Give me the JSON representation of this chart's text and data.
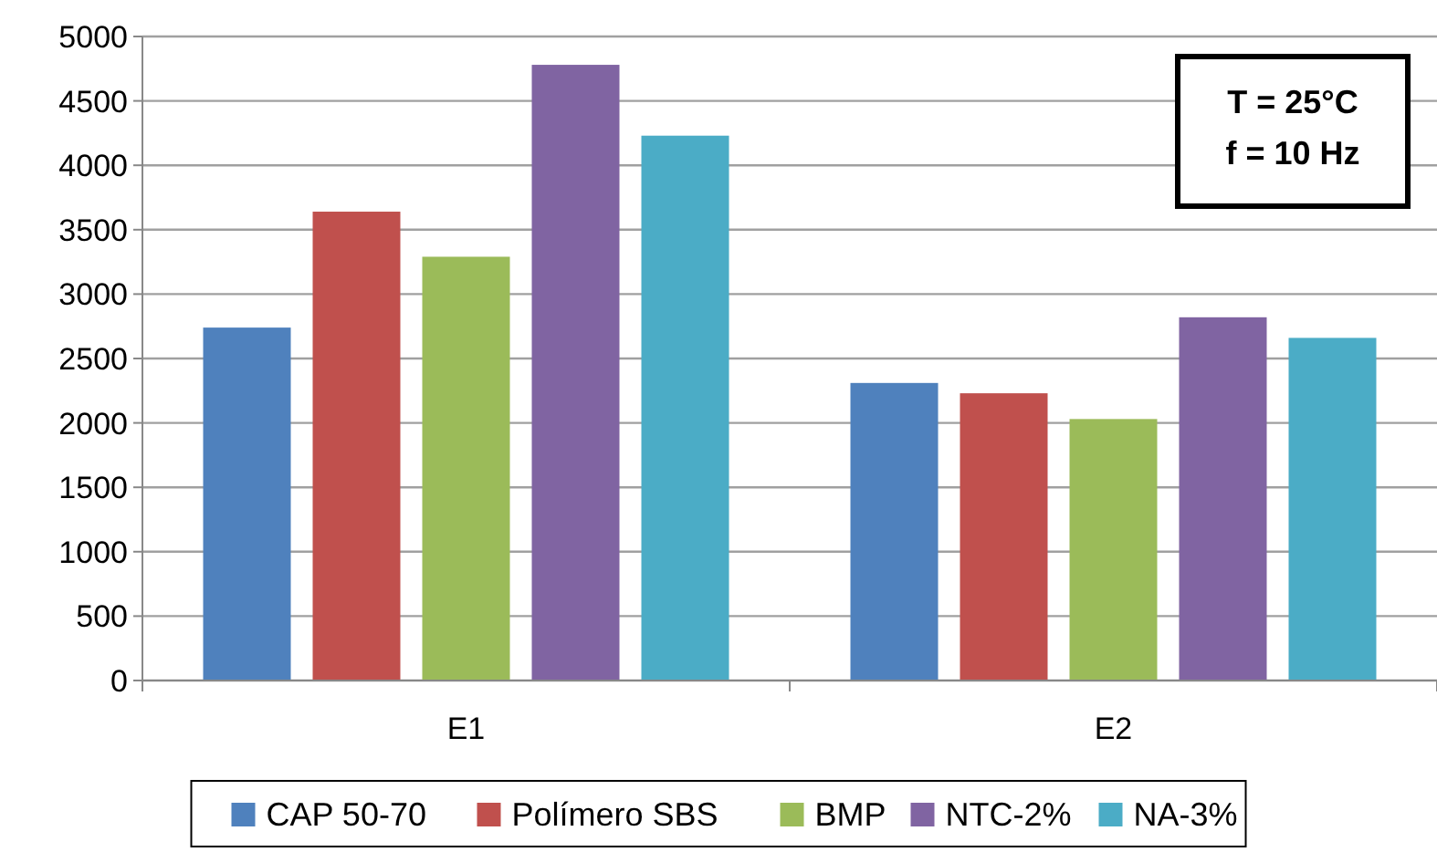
{
  "chart_data": {
    "type": "bar",
    "categories": [
      "E1",
      "E2"
    ],
    "series": [
      {
        "name": "CAP 50-70",
        "color": "#4f81bd",
        "values": [
          2740,
          2310
        ]
      },
      {
        "name": "Polímero SBS",
        "color": "#c0504d",
        "values": [
          3640,
          2230
        ]
      },
      {
        "name": "BMP",
        "color": "#9bbb59",
        "values": [
          3290,
          2030
        ]
      },
      {
        "name": "NTC-2%",
        "color": "#8064a2",
        "values": [
          4780,
          2820
        ]
      },
      {
        "name": "NA-3%",
        "color": "#4bacc6",
        "values": [
          4230,
          2660
        ]
      }
    ],
    "ylim": [
      0,
      5000
    ],
    "yticks": [
      0,
      500,
      1000,
      1500,
      2000,
      2500,
      3000,
      3500,
      4000,
      4500,
      5000
    ],
    "grid": "y",
    "legend": "bottom",
    "annotations": [
      "T = 25°C",
      "f = 10 Hz"
    ]
  }
}
